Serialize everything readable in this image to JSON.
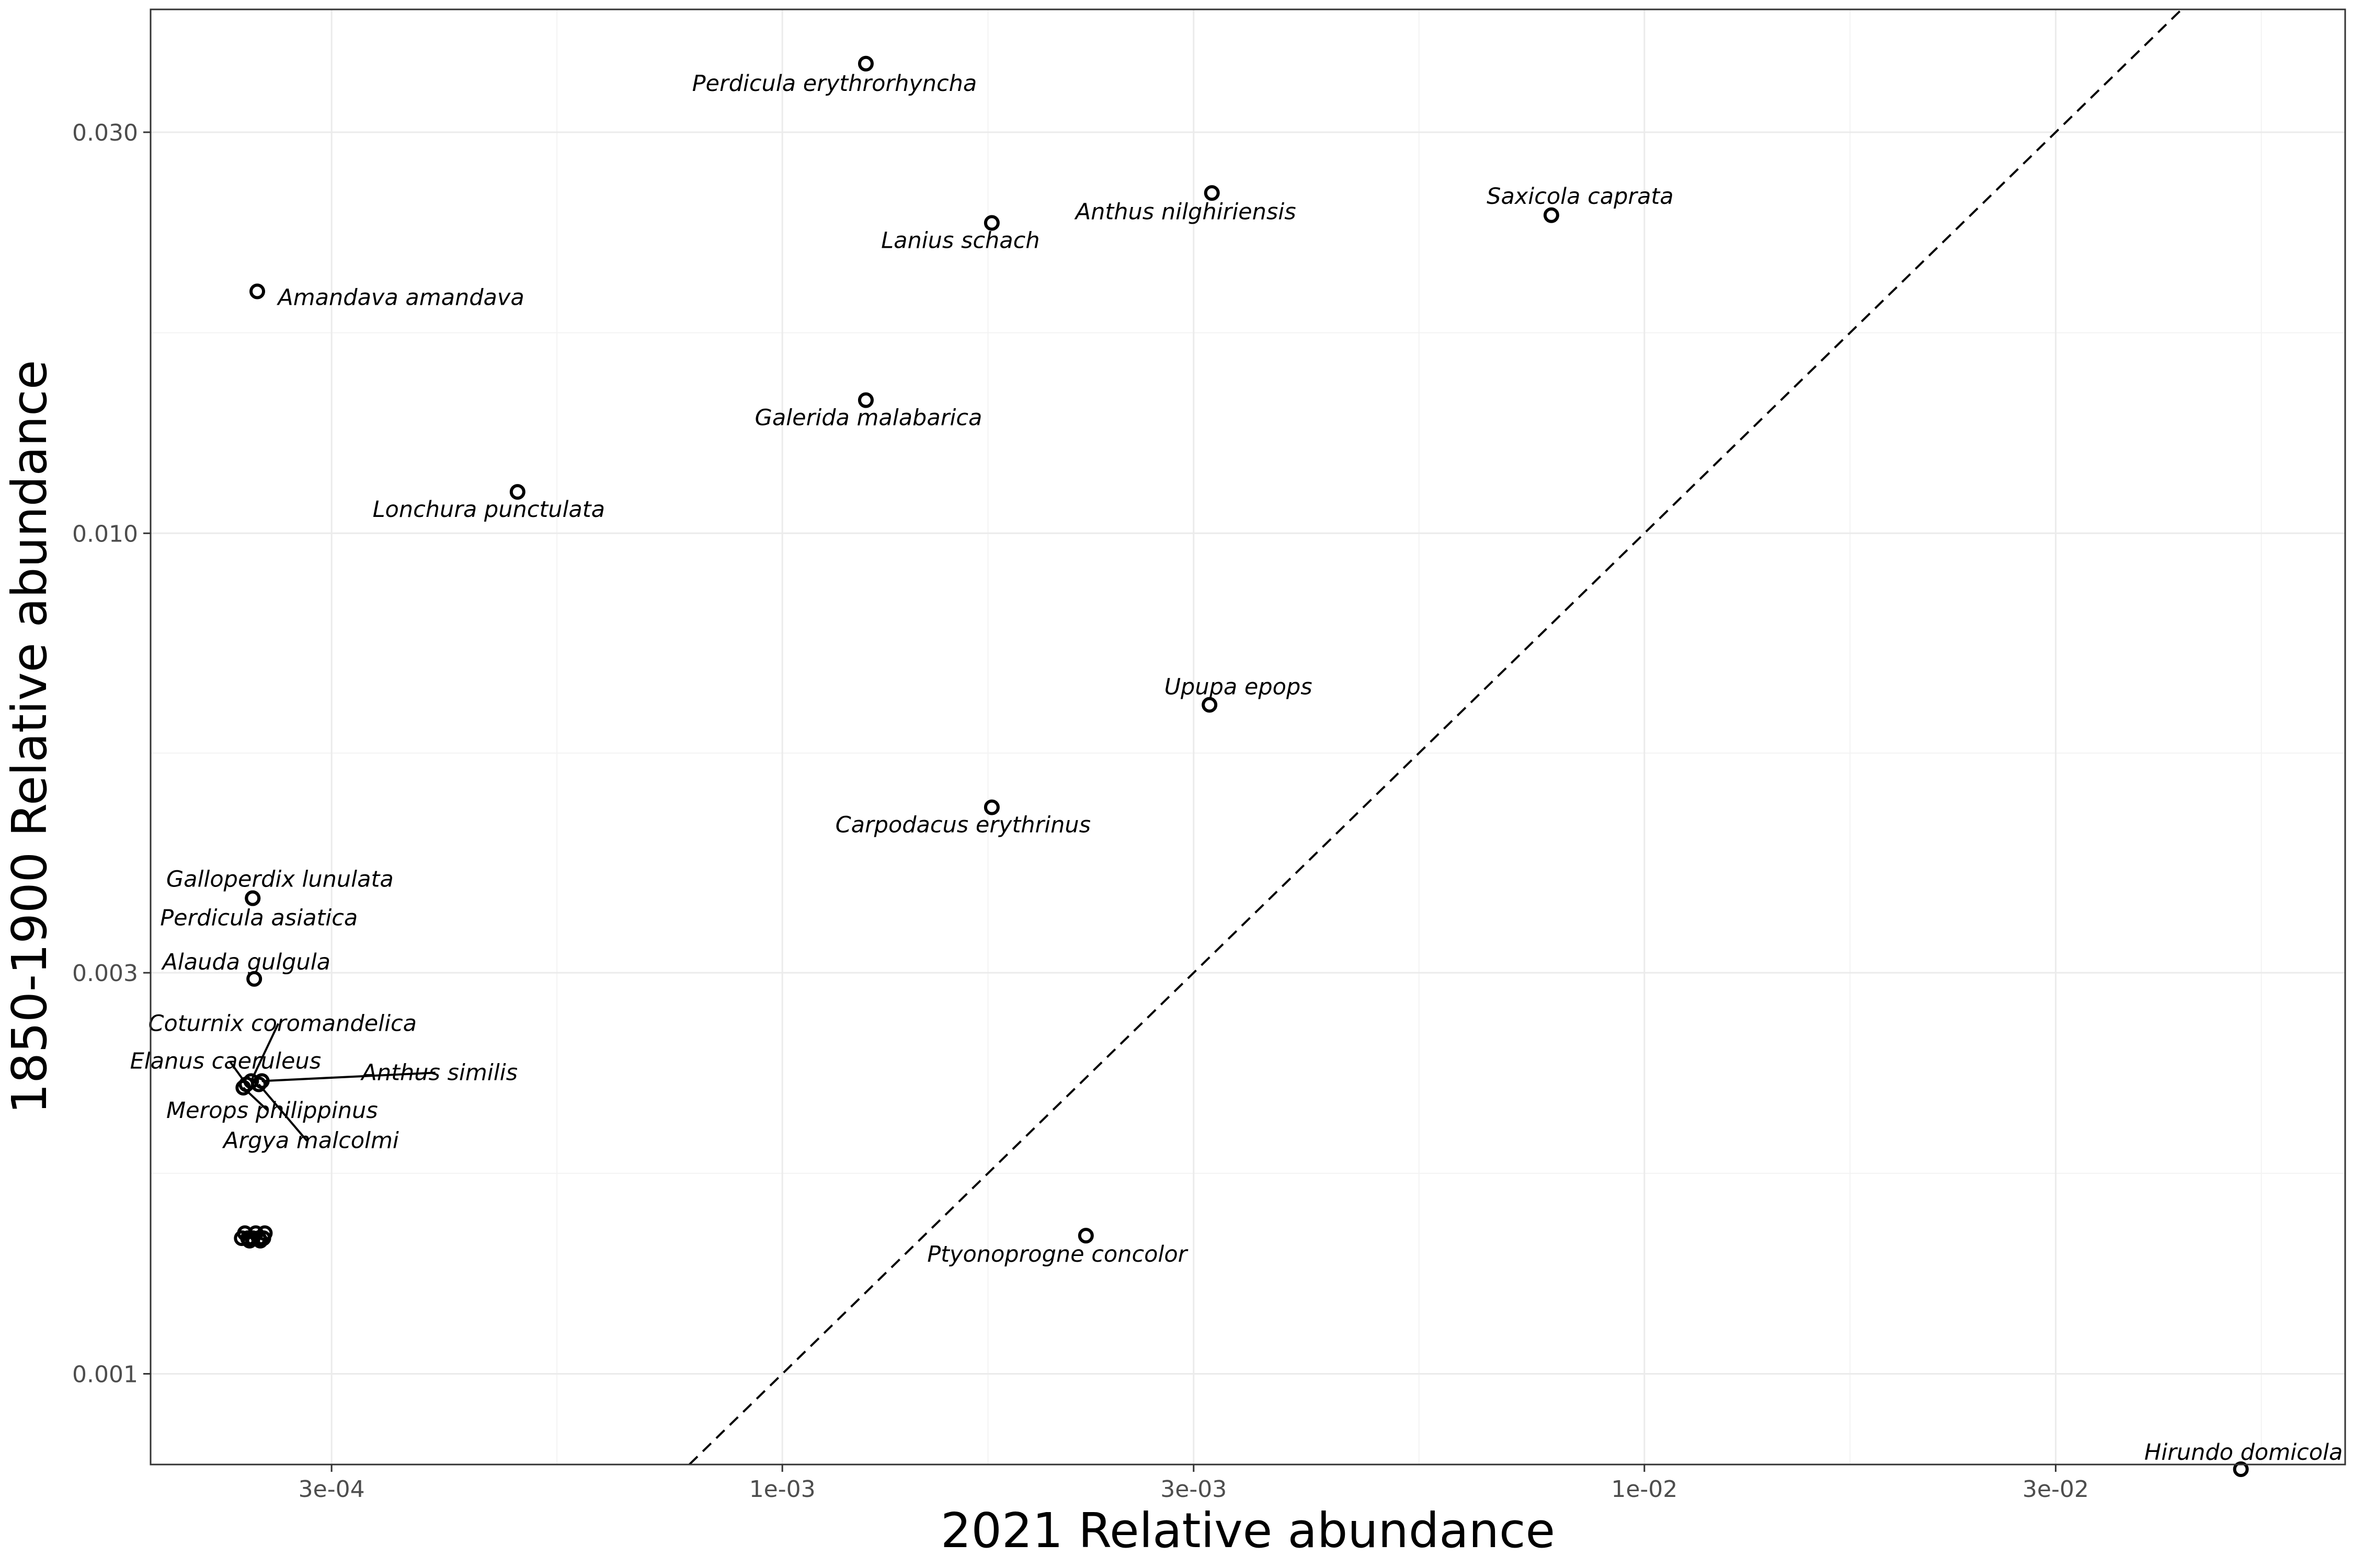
{
  "chart_data": {
    "type": "scatter",
    "xlabel": "2021 Relative abundance",
    "ylabel": "1850-1900 Relative abundance",
    "x_scale": "log10",
    "y_scale": "log10",
    "xlim": [
      0.000185,
      0.065
    ],
    "ylim": [
      0.00078,
      0.042
    ],
    "x_ticks": [
      {
        "value": 0.0003,
        "label": "3e-04"
      },
      {
        "value": 0.001,
        "label": "1e-03"
      },
      {
        "value": 0.003,
        "label": "3e-03"
      },
      {
        "value": 0.01,
        "label": "1e-02"
      },
      {
        "value": 0.03,
        "label": "3e-02"
      }
    ],
    "y_ticks": [
      {
        "value": 0.001,
        "label": "0.001"
      },
      {
        "value": 0.003,
        "label": "0.003"
      },
      {
        "value": 0.01,
        "label": "0.010"
      },
      {
        "value": 0.03,
        "label": "0.030"
      }
    ],
    "reference_line": "y = x (dashed)",
    "grid": true,
    "legend": "none",
    "points": [
      {
        "name": "Perdicula erythrorhyncha",
        "x": 0.00125,
        "y": 0.0362
      },
      {
        "name": "Anthus nilghiriensis",
        "x": 0.00315,
        "y": 0.0254
      },
      {
        "name": "Lanius schach",
        "x": 0.00175,
        "y": 0.0234
      },
      {
        "name": "Saxicola caprata",
        "x": 0.0078,
        "y": 0.0239
      },
      {
        "name": "Amandava amandava",
        "x": 0.000246,
        "y": 0.0194
      },
      {
        "name": "Galerida malabarica",
        "x": 0.00125,
        "y": 0.0144
      },
      {
        "name": "Lonchura punctulata",
        "x": 0.000493,
        "y": 0.0112
      },
      {
        "name": "Upupa epops",
        "x": 0.00313,
        "y": 0.00625
      },
      {
        "name": "Carpodacus erythrinus",
        "x": 0.00175,
        "y": 0.00472
      },
      {
        "name": "Galloperdix lunulata",
        "x": 0.000243,
        "y": 0.00368
      },
      {
        "name": "Perdicula asiatica",
        "x": 0.000243,
        "y": 0.00368
      },
      {
        "name": "Alauda gulgula",
        "x": 0.000244,
        "y": 0.00295
      },
      {
        "name": "Coturnix coromandelica",
        "x": 0.000242,
        "y": 0.00223
      },
      {
        "name": "Elanus caeruleus",
        "x": 0.000239,
        "y": 0.00221
      },
      {
        "name": "Anthus similis",
        "x": 0.000249,
        "y": 0.00223
      },
      {
        "name": "Merops philippinus",
        "x": 0.000237,
        "y": 0.00219
      },
      {
        "name": "Argya malcolmi",
        "x": 0.000247,
        "y": 0.00221
      },
      {
        "name": "Ptyonoprogne concolor",
        "x": 0.00225,
        "y": 0.00146
      },
      {
        "name": "Hirundo domicola",
        "x": 0.0492,
        "y": 0.00077
      },
      {
        "name": "",
        "x": 0.000236,
        "y": 0.00145
      },
      {
        "name": "",
        "x": 0.00024,
        "y": 0.00145
      },
      {
        "name": "",
        "x": 0.000243,
        "y": 0.00145
      },
      {
        "name": "",
        "x": 0.000247,
        "y": 0.00145
      },
      {
        "name": "",
        "x": 0.00025,
        "y": 0.00145
      },
      {
        "name": "",
        "x": 0.000238,
        "y": 0.00147
      },
      {
        "name": "",
        "x": 0.000245,
        "y": 0.00147
      },
      {
        "name": "",
        "x": 0.000251,
        "y": 0.00147
      },
      {
        "name": "",
        "x": 0.000241,
        "y": 0.00144
      },
      {
        "name": "",
        "x": 0.000248,
        "y": 0.00144
      }
    ]
  }
}
